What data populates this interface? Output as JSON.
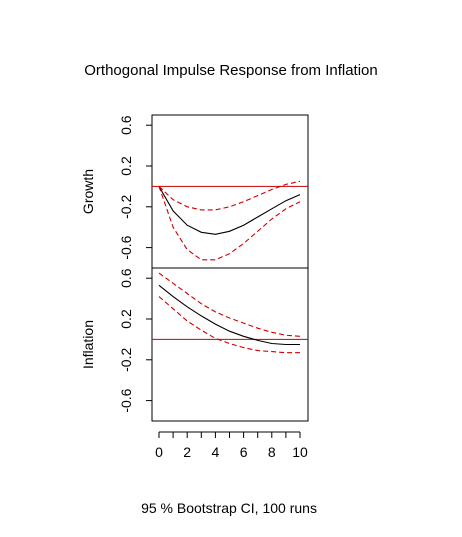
{
  "chart_data": {
    "type": "line",
    "title": "Orthogonal Impulse Response from Inflation",
    "xlabel": "95 % Bootstrap CI,  100 runs",
    "x": [
      0,
      1,
      2,
      3,
      4,
      5,
      6,
      7,
      8,
      9,
      10
    ],
    "x_ticks": [
      "0",
      "2",
      "4",
      "6",
      "8",
      "10"
    ],
    "y_ticks": [
      "-0.6",
      "-0.2",
      "0.2",
      "0.6"
    ],
    "ylim": [
      -0.8,
      0.7
    ],
    "colors": {
      "response": "#000000",
      "ci": "#cc0000",
      "zero": "#cc0000"
    },
    "panels": [
      {
        "ylabel": "Growth",
        "series": [
          {
            "role": "response",
            "values": [
              0.0,
              -0.24,
              -0.38,
              -0.45,
              -0.47,
              -0.44,
              -0.38,
              -0.3,
              -0.22,
              -0.14,
              -0.08
            ]
          },
          {
            "role": "upper",
            "values": [
              0.0,
              -0.13,
              -0.2,
              -0.23,
              -0.23,
              -0.2,
              -0.15,
              -0.09,
              -0.03,
              0.02,
              0.05
            ]
          },
          {
            "role": "lower",
            "values": [
              0.0,
              -0.4,
              -0.62,
              -0.72,
              -0.72,
              -0.66,
              -0.56,
              -0.44,
              -0.32,
              -0.22,
              -0.15
            ]
          }
        ]
      },
      {
        "ylabel": "Inflation",
        "series": [
          {
            "role": "response",
            "values": [
              0.53,
              0.42,
              0.32,
              0.23,
              0.15,
              0.08,
              0.03,
              -0.01,
              -0.04,
              -0.05,
              -0.05
            ]
          },
          {
            "role": "upper",
            "values": [
              0.65,
              0.55,
              0.45,
              0.35,
              0.27,
              0.21,
              0.16,
              0.11,
              0.07,
              0.04,
              0.03
            ]
          },
          {
            "role": "lower",
            "values": [
              0.42,
              0.3,
              0.18,
              0.09,
              0.01,
              -0.04,
              -0.08,
              -0.11,
              -0.12,
              -0.13,
              -0.13
            ]
          }
        ]
      }
    ]
  }
}
